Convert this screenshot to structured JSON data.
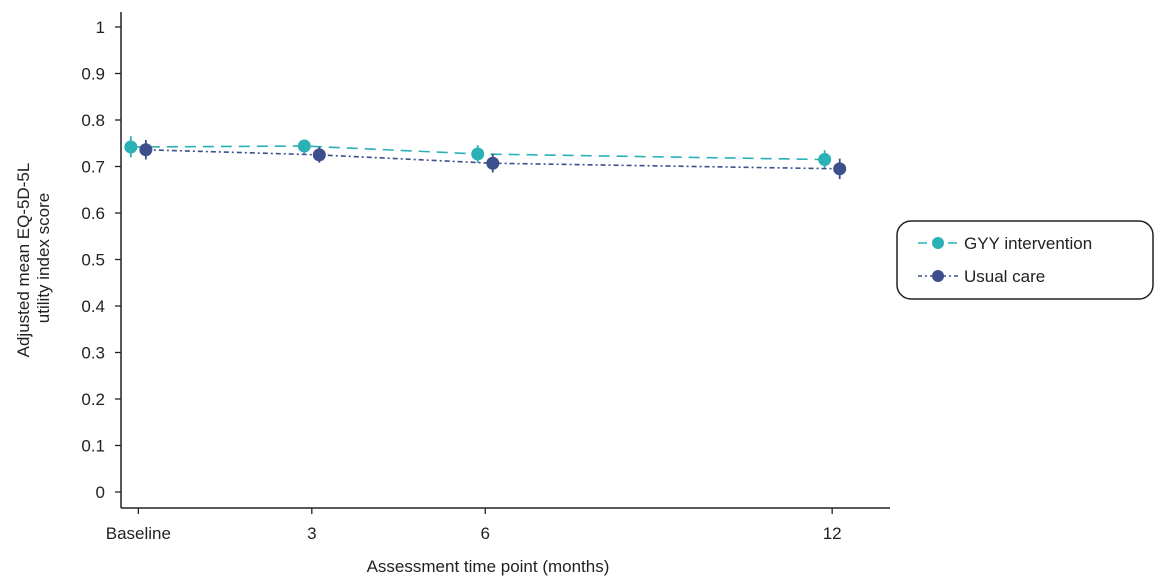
{
  "chart_data": {
    "type": "line",
    "title": "",
    "xlabel": "Assessment time point (months)",
    "ylabel": [
      "Adjusted mean EQ-5D-5L",
      "utility index score"
    ],
    "x": [
      0,
      3,
      6,
      12
    ],
    "x_tick_labels": [
      "Baseline",
      "3",
      "6",
      "12"
    ],
    "xlim": [
      -0.3,
      13
    ],
    "ylim": [
      0,
      1
    ],
    "y_ticks": [
      0,
      0.1,
      0.2,
      0.3,
      0.4,
      0.5,
      0.6,
      0.7,
      0.8,
      0.9,
      1
    ],
    "y_tick_labels": [
      "0",
      "0.1",
      "0.2",
      "0.3",
      "0.4",
      "0.5",
      "0.6",
      "0.7",
      "0.8",
      "0.9",
      "1"
    ],
    "grid": false,
    "legend_position": "right",
    "series": [
      {
        "name": "GYY intervention",
        "color": "#2ab0b5",
        "line_style": "dashed",
        "x": [
          0,
          3,
          6,
          12
        ],
        "values": [
          0.742,
          0.744,
          0.727,
          0.715
        ],
        "ci_low": [
          0.72,
          0.728,
          0.708,
          0.695
        ],
        "ci_high": [
          0.765,
          0.758,
          0.746,
          0.735
        ]
      },
      {
        "name": "Usual care",
        "color": "#3d4f8a",
        "line_style": "dotted-dashed",
        "x": [
          0,
          3,
          6,
          12
        ],
        "values": [
          0.736,
          0.725,
          0.707,
          0.695
        ],
        "ci_low": [
          0.715,
          0.708,
          0.687,
          0.673
        ],
        "ci_high": [
          0.757,
          0.742,
          0.727,
          0.717
        ]
      }
    ]
  }
}
